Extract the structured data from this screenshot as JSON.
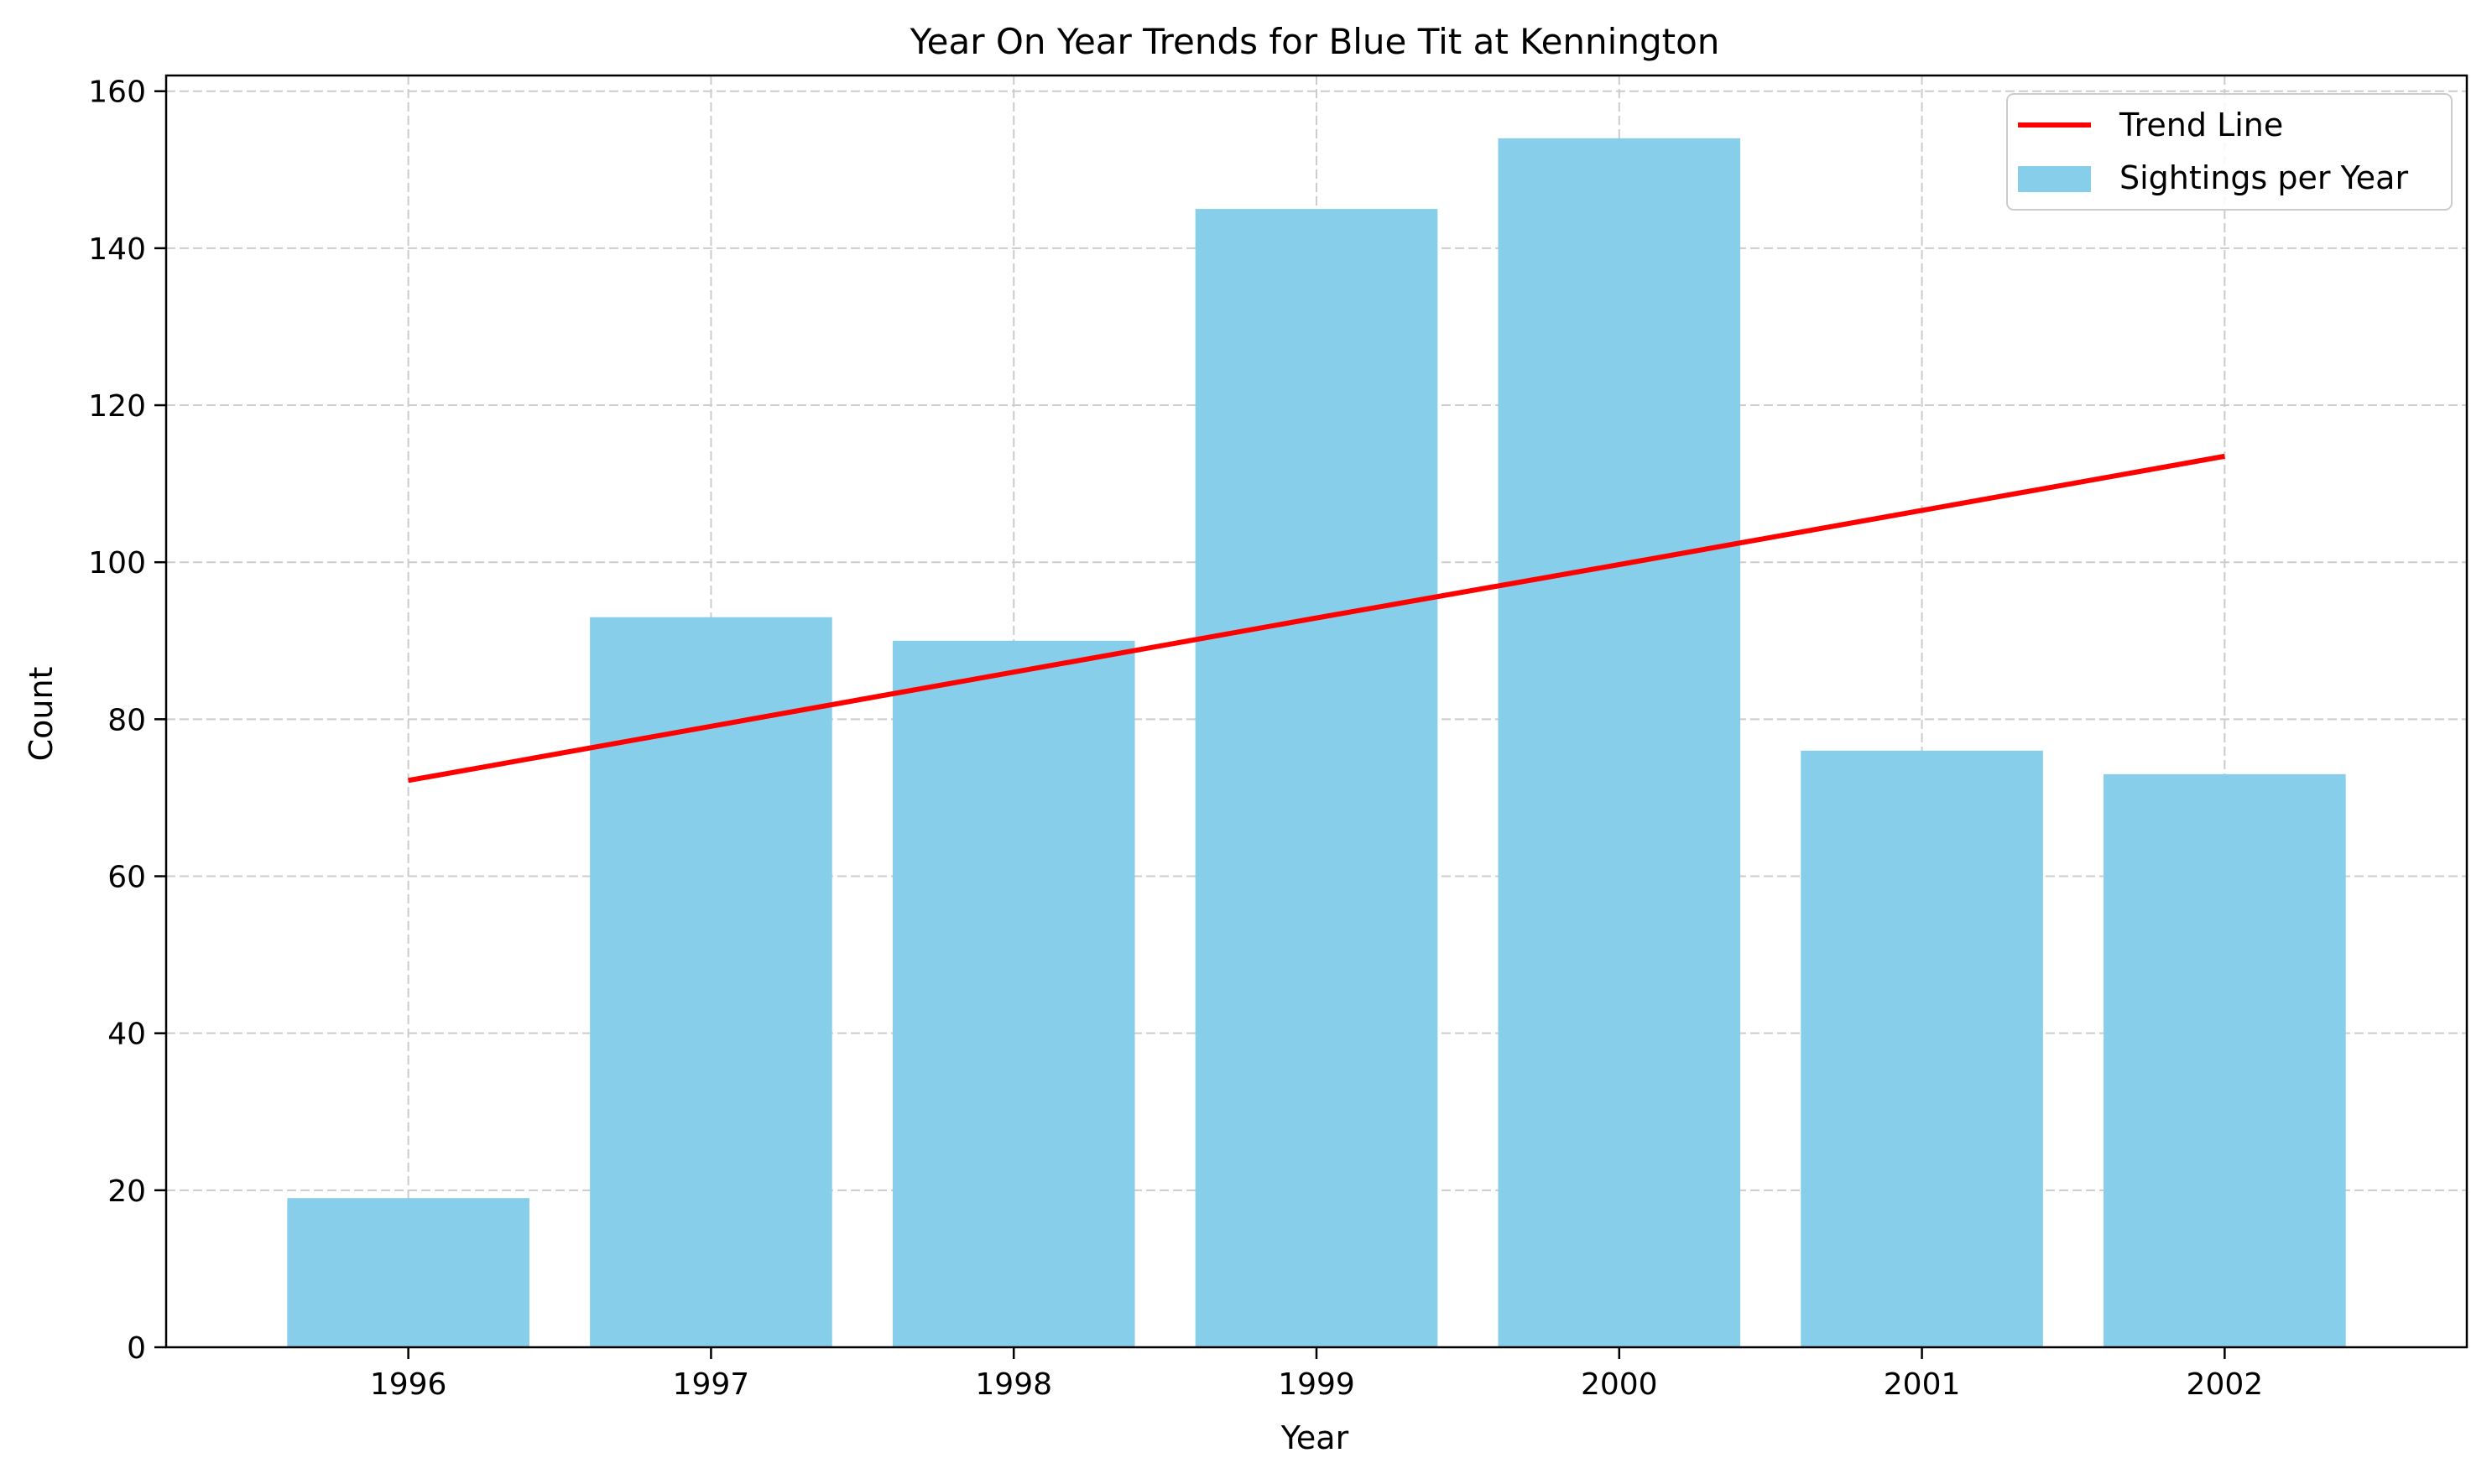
{
  "chart_data": {
    "type": "bar",
    "title": "Year On Year Trends for Blue Tit at Kennington",
    "xlabel": "Year",
    "ylabel": "Count",
    "categories": [
      "1996",
      "1997",
      "1998",
      "1999",
      "2000",
      "2001",
      "2002"
    ],
    "series": [
      {
        "name": "Sightings per Year",
        "type": "bar",
        "color": "#87CEEB",
        "values": [
          19,
          93,
          90,
          145,
          154,
          76,
          73
        ]
      },
      {
        "name": "Trend Line",
        "type": "line",
        "color": "#FF0000",
        "values": [
          72.2,
          79.1,
          86.0,
          92.9,
          99.7,
          106.6,
          113.5
        ]
      }
    ],
    "ylim": [
      0,
      162
    ],
    "yticks": [
      0,
      20,
      40,
      60,
      80,
      100,
      120,
      140,
      160
    ],
    "grid": true,
    "legend_position": "top-right"
  }
}
